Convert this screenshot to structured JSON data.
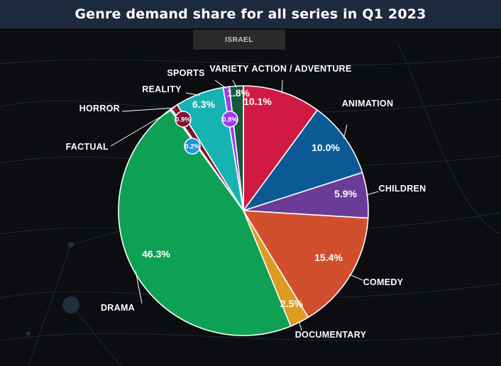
{
  "header": {
    "title": "Genre demand share for all series in Q1 2023"
  },
  "region": {
    "label": "ISRAEL"
  },
  "colors": {
    "background": "#0b0d10",
    "header": "#1d2a3e",
    "tab": "#2a2a2d"
  },
  "chart_data": {
    "type": "pie",
    "title": "Genre demand share for all series in Q1 2023",
    "subtitle": "ISRAEL",
    "unit": "%",
    "slices": [
      {
        "label": "ACTION / ADVENTURE",
        "value": 10.1,
        "value_label": "10.1%",
        "color": "#d11a43"
      },
      {
        "label": "ANIMATION",
        "value": 10.0,
        "value_label": "10.0%",
        "color": "#0b5a96"
      },
      {
        "label": "CHILDREN",
        "value": 5.9,
        "value_label": "5.9%",
        "color": "#6a3c98"
      },
      {
        "label": "COMEDY",
        "value": 15.4,
        "value_label": "15.4%",
        "color": "#d24f2d"
      },
      {
        "label": "DOCUMENTARY",
        "value": 2.5,
        "value_label": "2.5%",
        "color": "#dd9b22"
      },
      {
        "label": "DRAMA",
        "value": 46.3,
        "value_label": "46.3%",
        "color": "#0ea155"
      },
      {
        "label": "FACTUAL",
        "value": 0.2,
        "value_label": "0.2%",
        "color": "#1f97dc"
      },
      {
        "label": "HORROR",
        "value": 0.9,
        "value_label": "0.9%",
        "color": "#7c1230"
      },
      {
        "label": "REALITY",
        "value": 6.3,
        "value_label": "6.3%",
        "color": "#17b3b3"
      },
      {
        "label": "SPORTS",
        "value": 0.8,
        "value_label": "0.8%",
        "color": "#9a3cf2"
      },
      {
        "label": "VARIETY",
        "value": 1.8,
        "value_label": "1.8%",
        "color": "#145a3c"
      }
    ]
  }
}
